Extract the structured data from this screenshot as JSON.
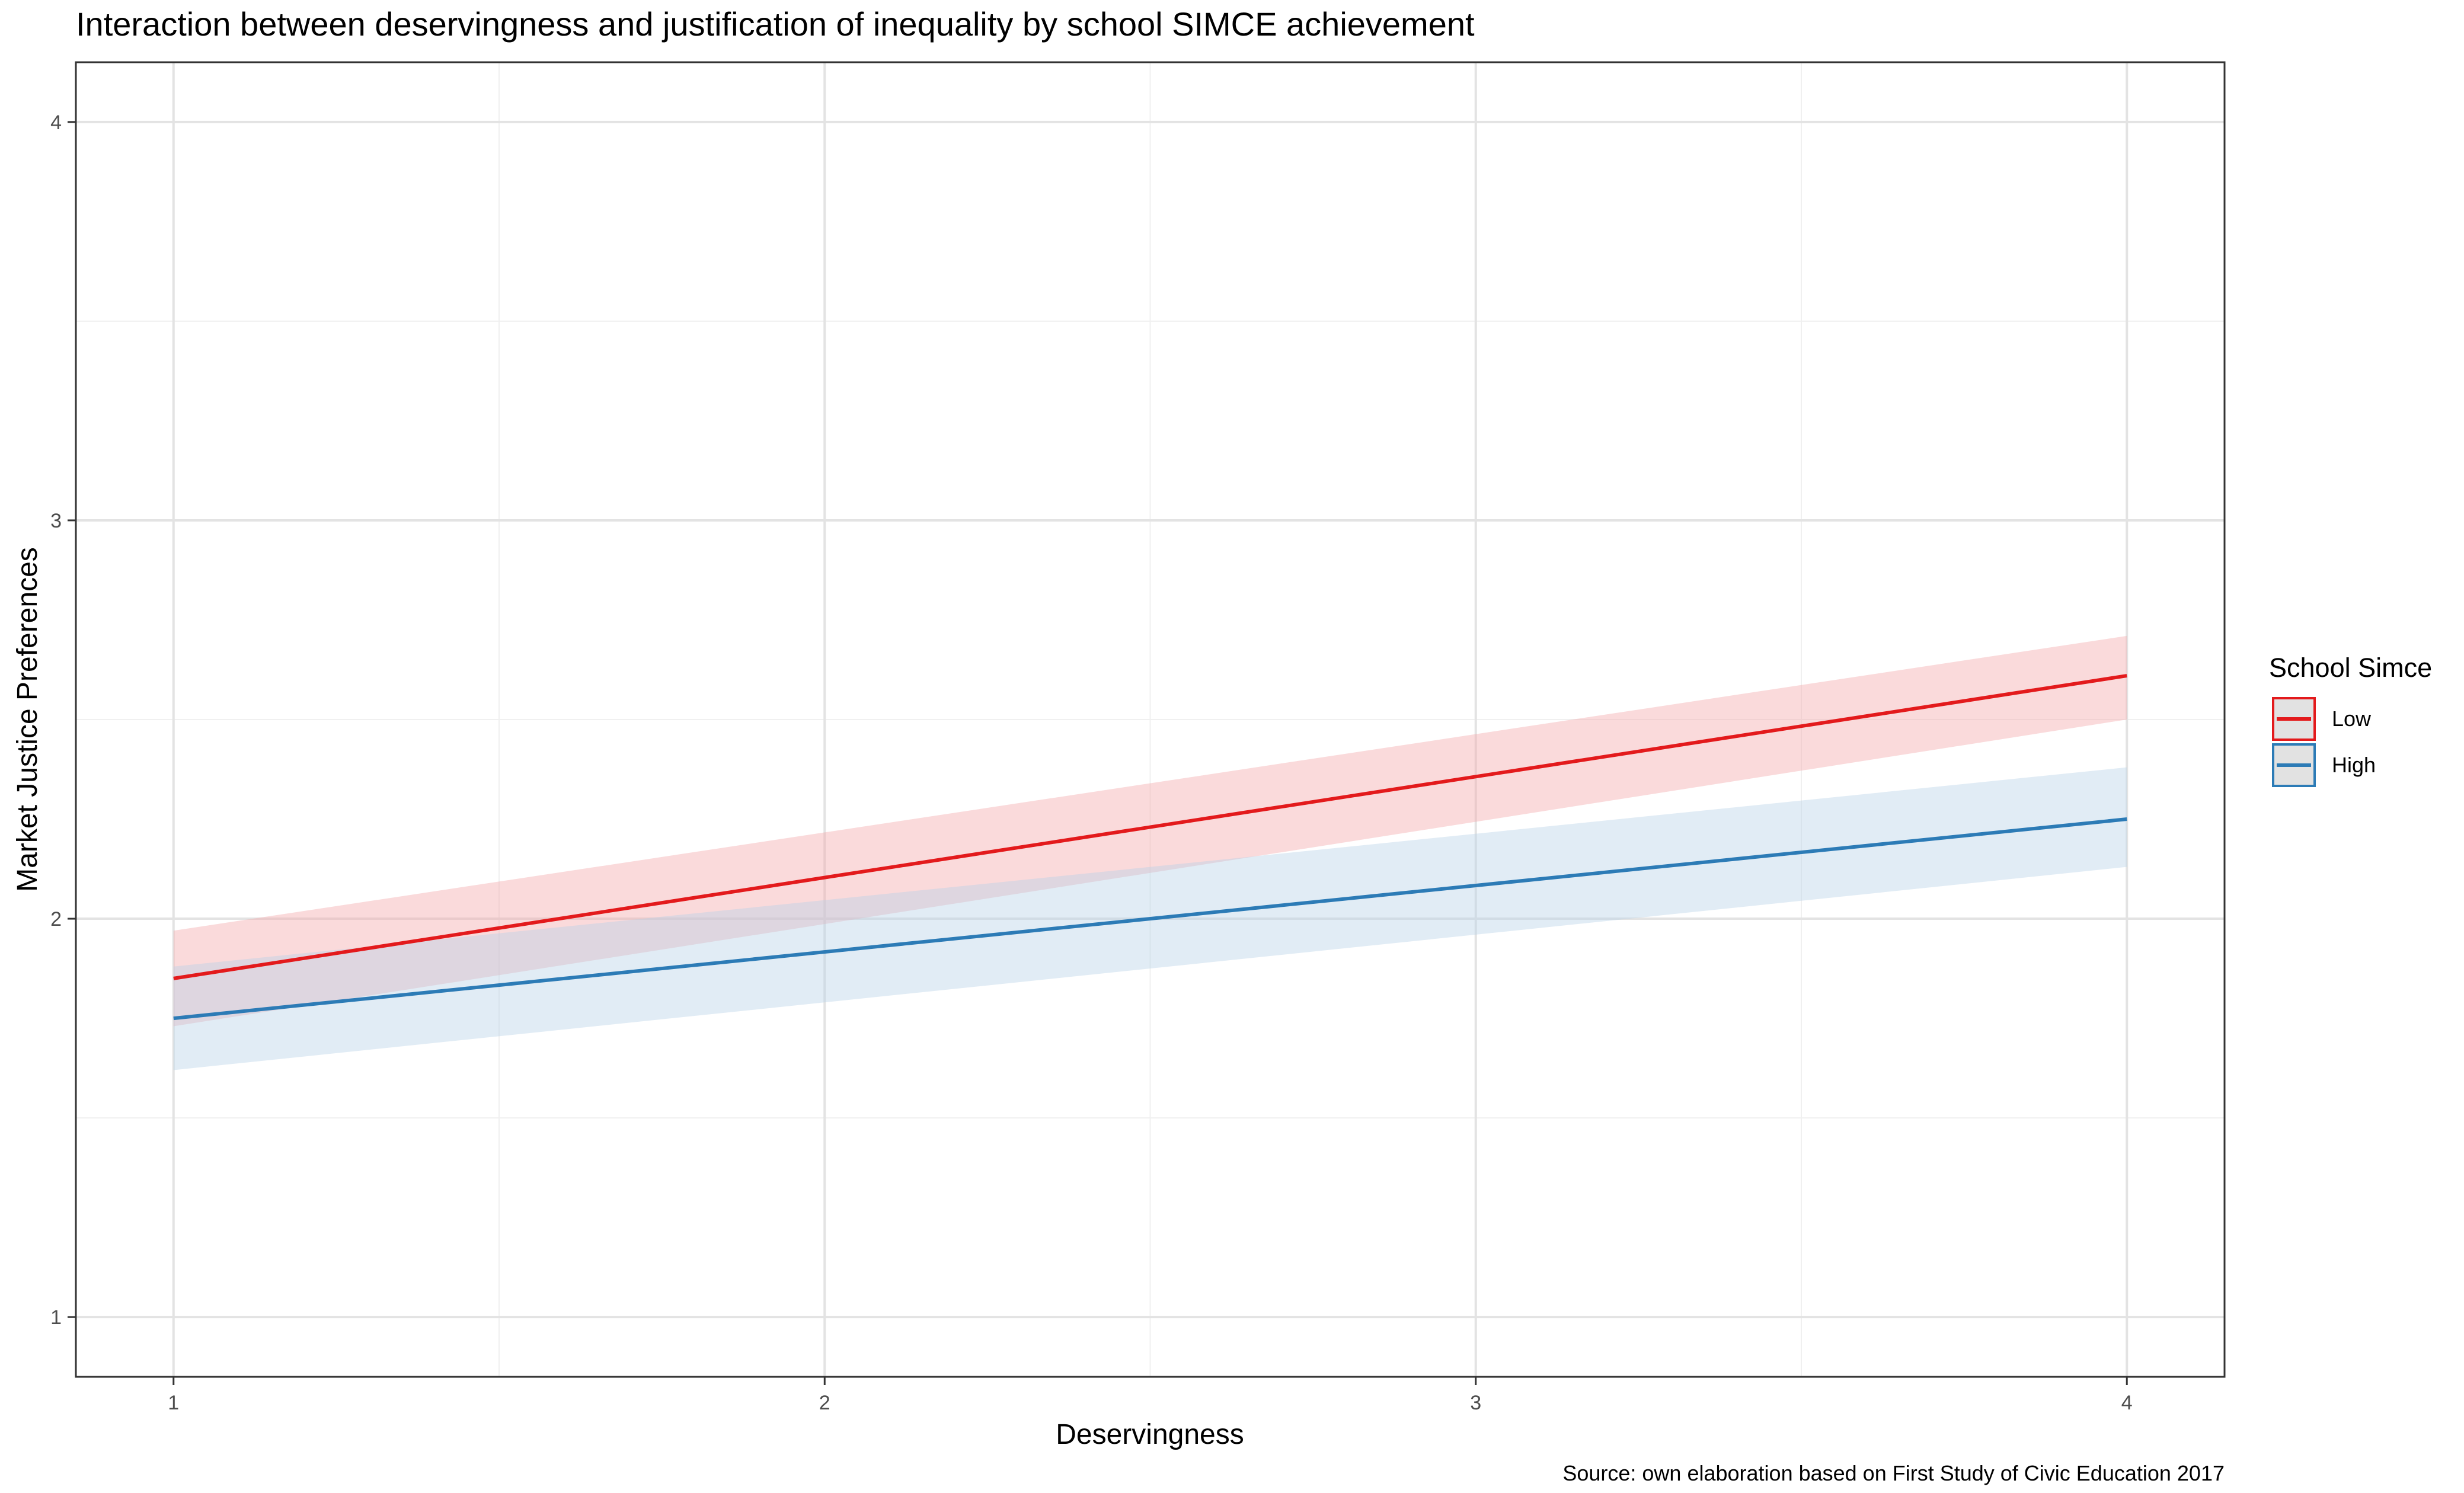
{
  "chart_data": {
    "type": "line",
    "title": "Interaction between deservingness and justification of inequality by school SIMCE achievement",
    "xlabel": "Deservingness",
    "ylabel": "Market Justice Preferences",
    "caption": "Source: own elaboration based on First Study of Civic Education 2017",
    "xlim": [
      0.85,
      4.15
    ],
    "ylim": [
      0.85,
      4.15
    ],
    "x_ticks": [
      "1",
      "2",
      "3",
      "4"
    ],
    "y_ticks": [
      "1",
      "2",
      "3",
      "4"
    ],
    "grid": true,
    "legend": {
      "title": "School Simce",
      "position": "right"
    },
    "series": [
      {
        "name": "Low",
        "color": "#e31a1c",
        "ribbon_color": "#f4a6aa",
        "x": [
          1,
          4
        ],
        "y": [
          1.85,
          2.61
        ],
        "lower": [
          1.73,
          2.5
        ],
        "upper": [
          1.97,
          2.71
        ]
      },
      {
        "name": "High",
        "color": "#2c7bb6",
        "ribbon_color": "#b8d2e8",
        "x": [
          1,
          4
        ],
        "y": [
          1.75,
          2.25
        ],
        "lower": [
          1.62,
          2.13
        ],
        "upper": [
          1.88,
          2.38
        ]
      }
    ]
  }
}
